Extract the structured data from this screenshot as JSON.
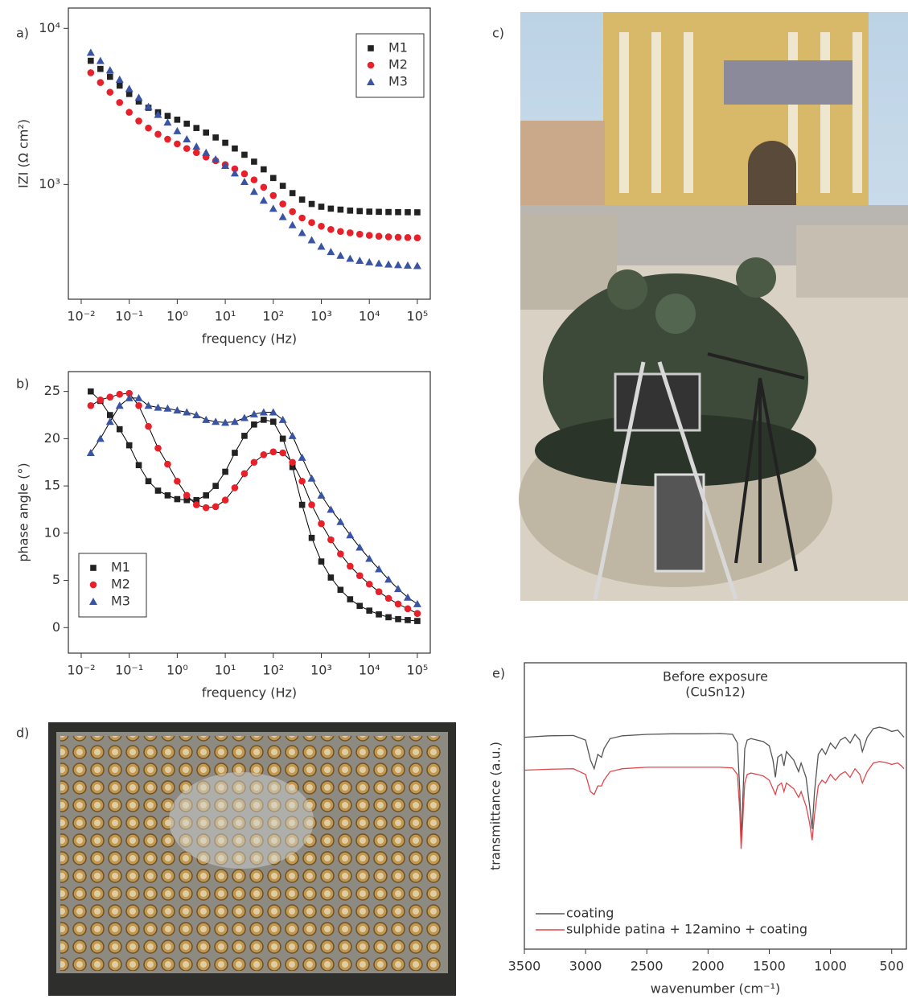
{
  "chart_data": [
    {
      "type": "scatter",
      "panel": "a)",
      "xlabel": "frequency (Hz)",
      "ylabel": "IZI  (Ω cm²)",
      "xlog": true,
      "ylog": true,
      "xlim": [
        0.0054,
        186000
      ],
      "ylim": [
        184,
        13500
      ],
      "xticks": [
        {
          "value": 0.01,
          "label": "10⁻²"
        },
        {
          "value": 0.1,
          "label": "10⁻¹"
        },
        {
          "value": 1,
          "label": "10⁰"
        },
        {
          "value": 10,
          "label": "10¹"
        },
        {
          "value": 100,
          "label": "10²"
        },
        {
          "value": 1000,
          "label": "10³"
        },
        {
          "value": 10000,
          "label": "10⁴"
        },
        {
          "value": 100000,
          "label": "10⁵"
        }
      ],
      "yticks": [
        {
          "value": 1000,
          "label": "10³"
        },
        {
          "value": 10000,
          "label": "10⁴"
        }
      ],
      "legend": "upper right",
      "x": [
        0.0158,
        0.0251,
        0.0398,
        0.0631,
        0.1,
        0.158,
        0.251,
        0.398,
        0.631,
        1,
        1.58,
        2.51,
        3.98,
        6.31,
        10,
        15.8,
        25.1,
        39.8,
        63.1,
        100,
        158,
        251,
        398,
        631,
        1000,
        1580,
        2510,
        3980,
        6310,
        10000,
        15800,
        25100,
        39800,
        63100,
        100000
      ],
      "series": [
        {
          "name": "M1",
          "color": "#222222",
          "marker": "square",
          "values": [
            6200,
            5500,
            4900,
            4300,
            3800,
            3400,
            3100,
            2900,
            2750,
            2600,
            2450,
            2300,
            2150,
            2000,
            1850,
            1700,
            1550,
            1400,
            1250,
            1100,
            980,
            880,
            800,
            750,
            720,
            700,
            690,
            680,
            675,
            670,
            668,
            666,
            665,
            664,
            663
          ]
        },
        {
          "name": "M2",
          "color": "#e8202a",
          "marker": "circle",
          "values": [
            5200,
            4500,
            3900,
            3350,
            2900,
            2550,
            2300,
            2100,
            1950,
            1820,
            1700,
            1600,
            1500,
            1420,
            1340,
            1260,
            1170,
            1070,
            960,
            850,
            750,
            670,
            610,
            570,
            540,
            515,
            500,
            490,
            480,
            472,
            466,
            462,
            459,
            457,
            455
          ]
        },
        {
          "name": "M3",
          "color": "#3a54a4",
          "marker": "triangle",
          "values": [
            7000,
            6200,
            5400,
            4700,
            4100,
            3600,
            3150,
            2800,
            2500,
            2200,
            1950,
            1750,
            1600,
            1450,
            1320,
            1180,
            1040,
            900,
            790,
            700,
            620,
            550,
            490,
            440,
            400,
            370,
            350,
            335,
            325,
            318,
            312,
            308,
            305,
            303,
            301
          ]
        }
      ]
    },
    {
      "type": "scatter",
      "panel": "b)",
      "xlabel": "frequency (Hz)",
      "ylabel": "phase angle (°)",
      "xlog": true,
      "ylog": false,
      "xlim": [
        0.0054,
        186000
      ],
      "ylim": [
        -2.7,
        27.1
      ],
      "xticks": [
        {
          "value": 0.01,
          "label": "10⁻²"
        },
        {
          "value": 0.1,
          "label": "10⁻¹"
        },
        {
          "value": 1,
          "label": "10⁰"
        },
        {
          "value": 10,
          "label": "10¹"
        },
        {
          "value": 100,
          "label": "10²"
        },
        {
          "value": 1000,
          "label": "10³"
        },
        {
          "value": 10000,
          "label": "10⁴"
        },
        {
          "value": 100000,
          "label": "10⁵"
        }
      ],
      "yticks": [
        0,
        5,
        10,
        15,
        20,
        25
      ],
      "legend": "lower left",
      "fit_lines": true,
      "fit_color": "#000000",
      "x": [
        0.0158,
        0.0251,
        0.0398,
        0.0631,
        0.1,
        0.158,
        0.251,
        0.398,
        0.631,
        1,
        1.58,
        2.51,
        3.98,
        6.31,
        10,
        15.8,
        25.1,
        39.8,
        63.1,
        100,
        158,
        251,
        398,
        631,
        1000,
        1580,
        2510,
        3980,
        6310,
        10000,
        15800,
        25100,
        39800,
        63100,
        100000
      ],
      "series": [
        {
          "name": "M1",
          "color": "#222222",
          "marker": "square",
          "values": [
            25,
            24,
            22.5,
            21,
            19.3,
            17.2,
            15.5,
            14.5,
            14,
            13.6,
            13.5,
            13.5,
            14,
            15,
            16.5,
            18.5,
            20.3,
            21.5,
            22,
            21.8,
            20,
            17,
            13,
            9.5,
            7,
            5.3,
            4,
            3,
            2.3,
            1.8,
            1.4,
            1.1,
            0.9,
            0.8,
            0.7
          ]
        },
        {
          "name": "M2",
          "color": "#e8202a",
          "marker": "circle",
          "values": [
            23.5,
            24.1,
            24.4,
            24.7,
            24.8,
            23.5,
            21.3,
            19,
            17.3,
            15.5,
            14,
            13,
            12.7,
            12.8,
            13.5,
            14.8,
            16.3,
            17.5,
            18.3,
            18.6,
            18.5,
            17.5,
            15.5,
            13,
            11,
            9.3,
            7.8,
            6.5,
            5.5,
            4.6,
            3.8,
            3.1,
            2.5,
            2,
            1.5
          ]
        },
        {
          "name": "M3",
          "color": "#3a54a4",
          "marker": "triangle",
          "values": [
            18.5,
            20,
            21.8,
            23.5,
            24.3,
            24.3,
            23.5,
            23.3,
            23.2,
            23,
            22.8,
            22.5,
            22,
            21.8,
            21.7,
            21.8,
            22.2,
            22.6,
            22.8,
            22.8,
            22,
            20.3,
            18,
            15.8,
            14,
            12.5,
            11.2,
            9.8,
            8.5,
            7.3,
            6.2,
            5.1,
            4.1,
            3.2,
            2.5
          ]
        }
      ]
    },
    {
      "type": "line",
      "panel": "e)",
      "title": "Before exposure",
      "subtitle": "(CuSn12)",
      "xlabel": "wavenumber (cm⁻¹)",
      "ylabel": "transmittance (a.u.)",
      "xlog": false,
      "ylog": false,
      "xlim": [
        3500,
        380
      ],
      "ylim": [
        0,
        100
      ],
      "xticks": [
        3500,
        3000,
        2500,
        2000,
        1500,
        1000,
        500
      ],
      "legend": "lower left",
      "x": [
        3500,
        3300,
        3100,
        3000,
        2960,
        2930,
        2900,
        2870,
        2850,
        2800,
        2700,
        2500,
        2300,
        2100,
        1900,
        1800,
        1760,
        1740,
        1730,
        1720,
        1700,
        1680,
        1650,
        1600,
        1550,
        1500,
        1470,
        1450,
        1430,
        1400,
        1380,
        1360,
        1300,
        1260,
        1240,
        1200,
        1170,
        1150,
        1130,
        1100,
        1070,
        1040,
        1000,
        960,
        920,
        880,
        840,
        800,
        760,
        740,
        700,
        650,
        600,
        550,
        500,
        450,
        420,
        400
      ],
      "series": [
        {
          "name": "coating",
          "color": "#555555",
          "values": [
            74,
            74.5,
            74.6,
            73,
            66,
            63,
            68,
            67,
            70,
            73.5,
            74.5,
            75,
            75.2,
            75.2,
            75.3,
            75,
            72,
            55,
            38,
            48,
            70,
            73,
            73.5,
            73,
            72.5,
            71,
            66,
            60,
            67,
            68,
            64,
            69,
            66,
            62,
            65,
            60,
            50,
            42,
            55,
            68,
            70,
            68,
            72,
            70,
            73,
            74,
            72,
            75,
            73,
            69,
            74,
            77,
            77.5,
            77,
            76,
            76.5,
            75,
            74
          ]
        },
        {
          "name": "sulphide patina + 12amino + coating",
          "color": "#e0474c",
          "values": [
            62.5,
            62.8,
            63,
            61,
            55,
            54,
            57,
            57,
            59,
            62,
            63,
            63.5,
            63.5,
            63.5,
            63.5,
            63.3,
            61,
            48,
            35,
            42,
            58,
            61,
            61.5,
            61,
            60.5,
            59,
            56,
            54,
            57,
            58,
            55,
            58,
            56,
            53,
            55,
            50,
            44,
            38,
            47,
            57,
            59,
            58,
            61,
            59,
            61,
            62,
            60,
            63,
            61,
            58,
            62,
            65,
            65.5,
            65.2,
            64.5,
            65,
            64,
            63
          ]
        }
      ]
    }
  ],
  "images": [
    {
      "panel": "c)"
    },
    {
      "panel": "d)"
    }
  ]
}
